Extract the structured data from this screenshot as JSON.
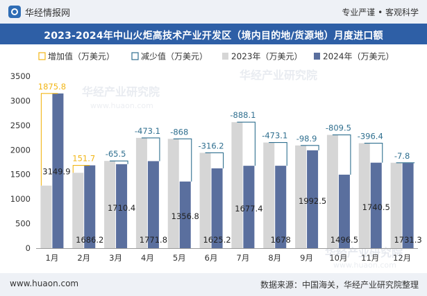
{
  "header": {
    "brand": "华经情报网",
    "slogan": "专业严谨 • 客观科学"
  },
  "title": "2023-2024年中山火炬高技术产业开发区（境内目的地/货源地）月度进口额",
  "footer": {
    "site": "www.huaon.com",
    "source": "数据来源：中国海关，华经产业研究院整理"
  },
  "watermark": "华经产业研究院",
  "watermark_url": "www.huaon.com",
  "colors": {
    "series_2023": "#d6d6d6",
    "series_2024": "#5a6f9e",
    "increase": "#f2b616",
    "decrease": "#2f6f8f",
    "title_bg": "#2e5fa6"
  },
  "chart_data": {
    "type": "bar",
    "categories": [
      "1月",
      "2月",
      "3月",
      "4月",
      "5月",
      "6月",
      "7月",
      "8月",
      "9月",
      "10月",
      "11月",
      "12月"
    ],
    "series": [
      {
        "name": "2023年（万美元）",
        "values": [
          1274.1,
          1534.5,
          1775.9,
          2244.9,
          2224.8,
          1941.4,
          2565.5,
          2151.1,
          2091.4,
          2306.0,
          2136.9,
          1739.1
        ]
      },
      {
        "name": "2024年（万美元）",
        "values": [
          3149.9,
          1686.2,
          1710.4,
          1771.8,
          1356.8,
          1625.2,
          1677.4,
          1678,
          1992.5,
          1496.5,
          1740.5,
          1731.3
        ]
      }
    ],
    "change": [
      {
        "label": "1875.8",
        "type": "increase"
      },
      {
        "label": "151.7",
        "type": "increase"
      },
      {
        "label": "-65.5",
        "type": "decrease"
      },
      {
        "label": "-473.1",
        "type": "decrease"
      },
      {
        "label": "-868",
        "type": "decrease"
      },
      {
        "label": "-316.2",
        "type": "decrease"
      },
      {
        "label": "-888.1",
        "type": "decrease"
      },
      {
        "label": "-473.1",
        "type": "decrease"
      },
      {
        "label": "-98.9",
        "type": "decrease"
      },
      {
        "label": "-809.5",
        "type": "decrease"
      },
      {
        "label": "-396.4",
        "type": "decrease"
      },
      {
        "label": "-7.8",
        "type": "decrease"
      }
    ],
    "legend": [
      "增加值（万美元）",
      "减少值（万美元）",
      "2023年（万美元）",
      "2024年（万美元）"
    ],
    "legend_position": "top",
    "ylim": [
      0,
      3500
    ],
    "yticks": [
      0,
      500,
      1000,
      1500,
      2000,
      2500,
      3000,
      3500
    ],
    "grid": false
  }
}
